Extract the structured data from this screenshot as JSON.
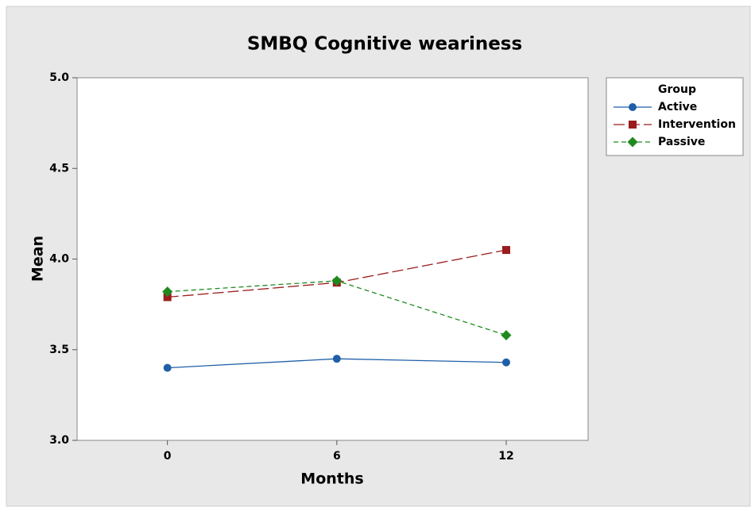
{
  "chart_data": {
    "type": "line",
    "title": "SMBQ Cognitive weariness",
    "x_label": "Months",
    "y_label": "Mean",
    "x": [
      0,
      6,
      12
    ],
    "xlim": [
      -3.2,
      14.9
    ],
    "xticks": [
      0,
      6,
      12
    ],
    "ylim": [
      3.0,
      5.0
    ],
    "yticks": [
      {
        "value": 3.0,
        "label": "3.0"
      },
      {
        "value": 3.5,
        "label": "3.5"
      },
      {
        "value": 4.0,
        "label": "4.0"
      },
      {
        "value": 4.5,
        "label": "4.5"
      },
      {
        "value": 5.0,
        "label": "5.0"
      }
    ],
    "grid": false,
    "legend_position": "right",
    "legend_title": "Group",
    "series": [
      {
        "name": "Active",
        "color": "#1f5fa8",
        "marker": "circle",
        "line_style": "solid",
        "values": [
          3.4,
          3.45,
          3.43
        ]
      },
      {
        "name": "Intervention",
        "color": "#9b1c1c",
        "marker": "square",
        "line_style": "longdash",
        "values": [
          3.79,
          3.87,
          4.05
        ]
      },
      {
        "name": "Passive",
        "color": "#1e8a1e",
        "marker": "diamond",
        "line_style": "shortdash",
        "values": [
          3.82,
          3.88,
          3.58
        ]
      }
    ]
  }
}
